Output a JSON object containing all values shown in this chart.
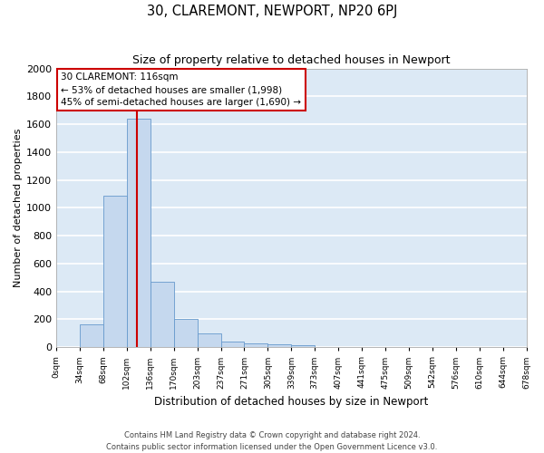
{
  "title": "30, CLAREMONT, NEWPORT, NP20 6PJ",
  "subtitle": "Size of property relative to detached houses in Newport",
  "xlabel": "Distribution of detached houses by size in Newport",
  "ylabel": "Number of detached properties",
  "bar_labels": [
    "0sqm",
    "34sqm",
    "68sqm",
    "102sqm",
    "136sqm",
    "170sqm",
    "203sqm",
    "237sqm",
    "271sqm",
    "305sqm",
    "339sqm",
    "373sqm",
    "407sqm",
    "441sqm",
    "475sqm",
    "509sqm",
    "542sqm",
    "576sqm",
    "610sqm",
    "644sqm",
    "678sqm"
  ],
  "bar_heights": [
    0,
    165,
    1090,
    1640,
    470,
    200,
    100,
    38,
    25,
    20,
    15,
    0,
    0,
    0,
    0,
    0,
    0,
    0,
    0,
    0,
    0
  ],
  "bar_color": "#c5d8ee",
  "bar_edge_color": "#6699cc",
  "bg_color": "#dce9f5",
  "grid_color": "#ffffff",
  "red_line_color": "#cc0000",
  "annotation_text": "30 CLAREMONT: 116sqm\n← 53% of detached houses are smaller (1,998)\n45% of semi-detached houses are larger (1,690) →",
  "annotation_box_facecolor": "#ffffff",
  "annotation_box_edgecolor": "#cc0000",
  "ylim": [
    0,
    2000
  ],
  "yticks": [
    0,
    200,
    400,
    600,
    800,
    1000,
    1200,
    1400,
    1600,
    1800,
    2000
  ],
  "footer_line1": "Contains HM Land Registry data © Crown copyright and database right 2024.",
  "footer_line2": "Contains public sector information licensed under the Open Government Licence v3.0."
}
